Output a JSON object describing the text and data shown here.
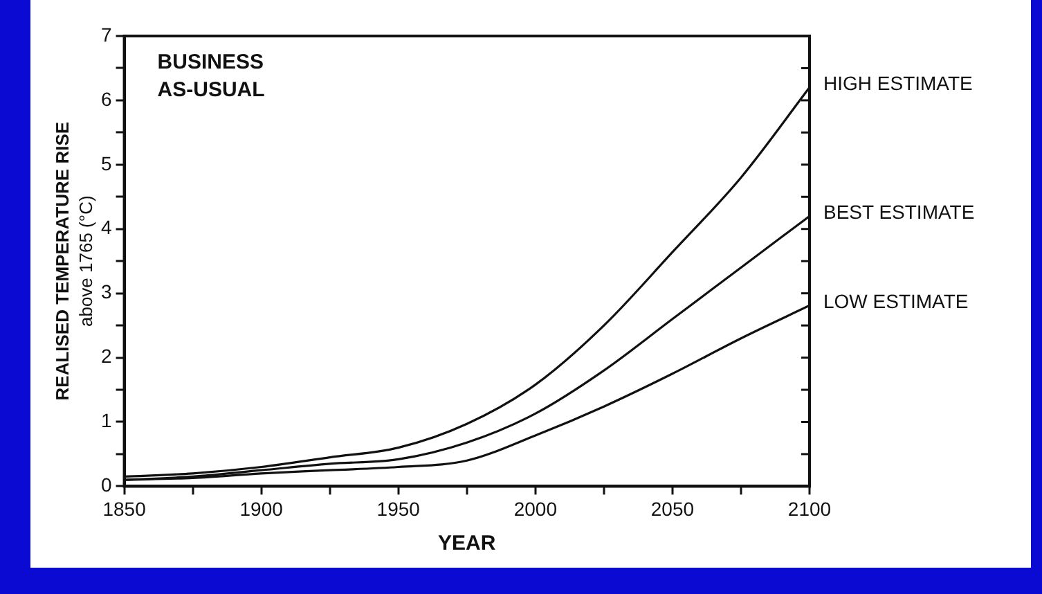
{
  "chart_data": {
    "type": "line",
    "xlabel": "YEAR",
    "ylabel": "REALISED TEMPERATURE RISE above 1765 (°C)",
    "annotations": [
      "BUSINESS AS-USUAL"
    ],
    "x": [
      1850,
      1875,
      1900,
      1925,
      1950,
      1975,
      2000,
      2025,
      2050,
      2075,
      2100
    ],
    "series": [
      {
        "name": "HIGH ESTIMATE",
        "color": "#111111",
        "values": [
          0.15,
          0.2,
          0.3,
          0.45,
          0.6,
          0.97,
          1.58,
          2.5,
          3.64,
          4.8,
          6.2
        ]
      },
      {
        "name": "BEST ESTIMATE",
        "color": "#111111",
        "values": [
          0.1,
          0.15,
          0.25,
          0.35,
          0.42,
          0.68,
          1.13,
          1.8,
          2.6,
          3.4,
          4.2
        ]
      },
      {
        "name": "LOW ESTIMATE",
        "color": "#111111",
        "values": [
          0.1,
          0.13,
          0.2,
          0.25,
          0.3,
          0.4,
          0.79,
          1.24,
          1.75,
          2.3,
          2.81
        ]
      }
    ],
    "xlim": [
      1850,
      2100
    ],
    "ylim": [
      0,
      7
    ],
    "xticks": [
      1850,
      {
        "value": 1875,
        "label": null
      },
      1900,
      {
        "value": 1925,
        "label": null
      },
      1950,
      {
        "value": 1975,
        "label": null
      },
      2000,
      {
        "value": 2025,
        "label": null
      },
      2050,
      {
        "value": 2075,
        "label": null
      },
      2100
    ],
    "yticks": [
      0,
      {
        "value": 0.5,
        "label": null
      },
      1,
      {
        "value": 1.5,
        "label": null
      },
      2,
      {
        "value": 2.5,
        "label": null
      },
      3,
      {
        "value": 3.5,
        "label": null
      },
      4,
      {
        "value": 4.5,
        "label": null
      },
      5,
      {
        "value": 5.5,
        "label": null
      },
      6,
      {
        "value": 6.5,
        "label": null
      },
      7
    ],
    "grid": false,
    "legend": "right",
    "marker": "none",
    "line_style": "solid"
  }
}
